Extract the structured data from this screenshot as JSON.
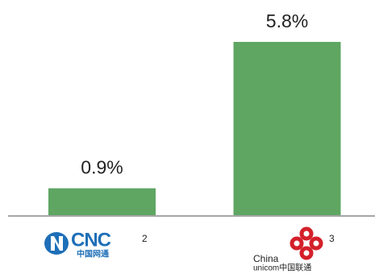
{
  "chart_data": {
    "type": "bar",
    "categories": [
      "CNC",
      "China"
    ],
    "category_subtexts": [
      "中国网通",
      "unicom中国联通"
    ],
    "footnotes": [
      "2",
      "3"
    ],
    "values": [
      0.9,
      5.8
    ],
    "value_labels": [
      "0.9%",
      "5.8%"
    ],
    "color": "#5ea662"
  }
}
